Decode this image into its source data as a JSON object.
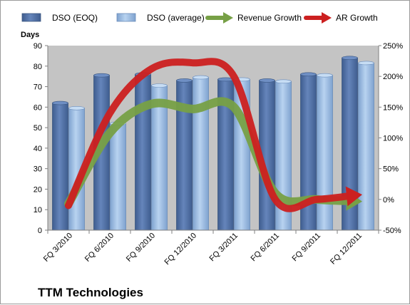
{
  "chart_data": {
    "type": "bar",
    "title": "",
    "company_label": "TTM Technologies",
    "ylabel": "Days",
    "ylim": [
      0,
      90
    ],
    "yticks": [
      "0",
      "10",
      "20",
      "30",
      "40",
      "50",
      "60",
      "70",
      "80",
      "90"
    ],
    "y2lim": [
      -50,
      250
    ],
    "y2ticks": [
      "-50%",
      "0%",
      "50%",
      "100%",
      "150%",
      "200%",
      "250%"
    ],
    "grid": false,
    "legend_position": "top",
    "categories": [
      "FQ 3/2010",
      "FQ 6/2010",
      "FQ 9/2010",
      "FQ 12/2010",
      "FQ 3/2011",
      "FQ 6/2011",
      "FQ 9/2011",
      "FQ 12/2011"
    ],
    "series": [
      {
        "name": "DSO (EOQ)",
        "kind": "bar",
        "axis": "left",
        "color": "#4f6fa3",
        "values": [
          62,
          75.5,
          76,
          73,
          73.5,
          73,
          76,
          84
        ]
      },
      {
        "name": "DSO (average)",
        "kind": "bar",
        "axis": "left",
        "color": "#9dbde4",
        "values": [
          59.5,
          52,
          70.5,
          74.5,
          73.5,
          72.5,
          75.5,
          81.5
        ]
      },
      {
        "name": "Revenue Growth",
        "kind": "arrow-line",
        "axis": "right",
        "color": "#77a046",
        "values": [
          -7,
          108,
          155,
          147,
          150,
          10,
          0,
          -3
        ]
      },
      {
        "name": "AR Growth",
        "kind": "arrow-line",
        "axis": "right",
        "color": "#cc2020",
        "values": [
          -10,
          140,
          212,
          222,
          200,
          0,
          0,
          7
        ]
      }
    ],
    "colors": {
      "plot_background": "#c4c4c4",
      "bar_outline": "#3a5680"
    }
  }
}
